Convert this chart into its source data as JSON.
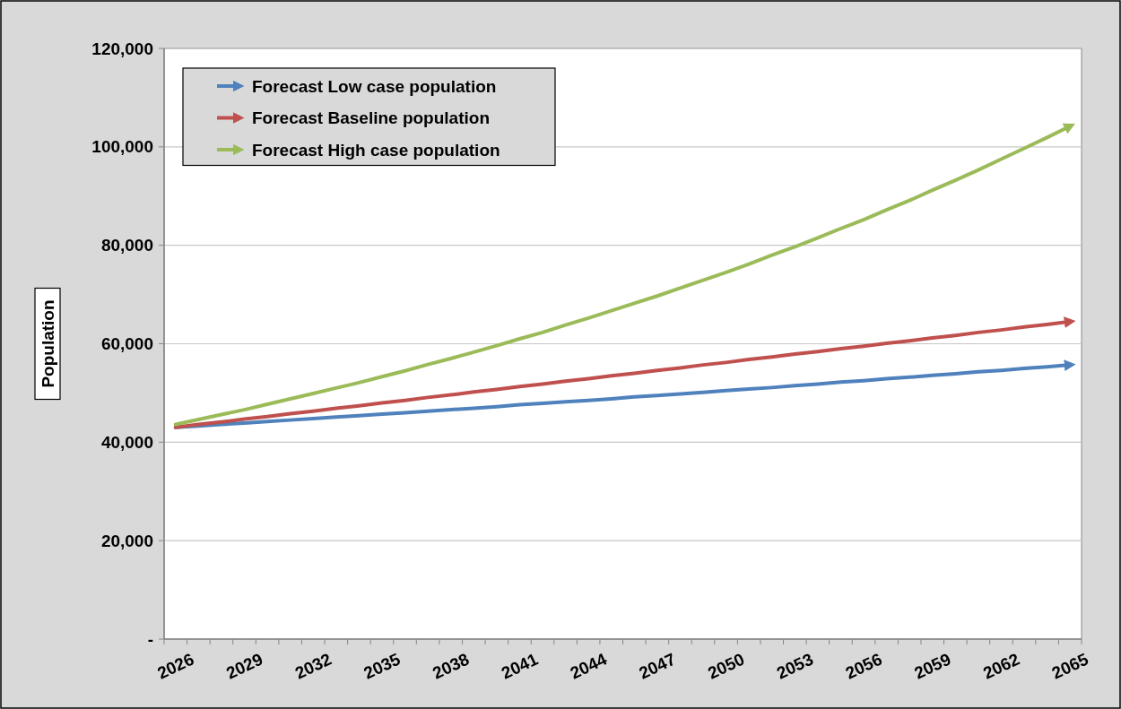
{
  "chart_data": {
    "type": "line",
    "ylabel": "Population",
    "categories": [
      "2026",
      null,
      null,
      "2029",
      null,
      null,
      "2032",
      null,
      null,
      "2035",
      null,
      null,
      "2038",
      null,
      null,
      "2041",
      null,
      null,
      "2044",
      null,
      null,
      "2047",
      null,
      null,
      "2050",
      null,
      null,
      "2053",
      null,
      null,
      "2056",
      null,
      null,
      "2059",
      null,
      null,
      "2062",
      null,
      null,
      "2065"
    ],
    "series": [
      {
        "name": "Forecast Low case population",
        "color": "#4f81bd",
        "values": [
          43000,
          43300,
          43600,
          43900,
          44200,
          44500,
          44800,
          45100,
          45400,
          45700,
          46000,
          46300,
          46600,
          46900,
          47200,
          47600,
          47900,
          48200,
          48500,
          48800,
          49200,
          49500,
          49800,
          50100,
          50500,
          50800,
          51100,
          51500,
          51800,
          52200,
          52500,
          52900,
          53200,
          53600,
          53900,
          54300,
          54600,
          55000,
          55300,
          55700
        ]
      },
      {
        "name": "Forecast Baseline population",
        "color": "#c0504d",
        "values": [
          43000,
          43600,
          44100,
          44700,
          45200,
          45800,
          46300,
          46900,
          47400,
          48000,
          48500,
          49100,
          49600,
          50200,
          50700,
          51300,
          51800,
          52400,
          52900,
          53500,
          54000,
          54600,
          55100,
          55700,
          56200,
          56800,
          57300,
          57900,
          58400,
          59000,
          59500,
          60100,
          60600,
          61200,
          61700,
          62300,
          62800,
          63400,
          63900,
          64500
        ]
      },
      {
        "name": "Forecast High case population",
        "color": "#9bbb59",
        "values": [
          43600,
          44600,
          45600,
          46600,
          47700,
          48800,
          49900,
          51000,
          52100,
          53300,
          54500,
          55800,
          57000,
          58300,
          59600,
          61000,
          62300,
          63800,
          65200,
          66700,
          68200,
          69700,
          71300,
          72900,
          74500,
          76200,
          78000,
          79700,
          81500,
          83400,
          85200,
          87200,
          89100,
          91200,
          93200,
          95300,
          97500,
          99700,
          101900,
          104200
        ]
      }
    ],
    "ylim": [
      0,
      120000
    ],
    "yticks": [
      {
        "value": 0,
        "label": "-"
      },
      {
        "value": 20000,
        "label": "20,000"
      },
      {
        "value": 40000,
        "label": "40,000"
      },
      {
        "value": 60000,
        "label": "60,000"
      },
      {
        "value": 80000,
        "label": "80,000"
      },
      {
        "value": 100000,
        "label": "100,000"
      },
      {
        "value": 120000,
        "label": "120,000"
      }
    ],
    "grid": "y",
    "legend": "top left",
    "marker": "none",
    "line_style": "solid"
  }
}
